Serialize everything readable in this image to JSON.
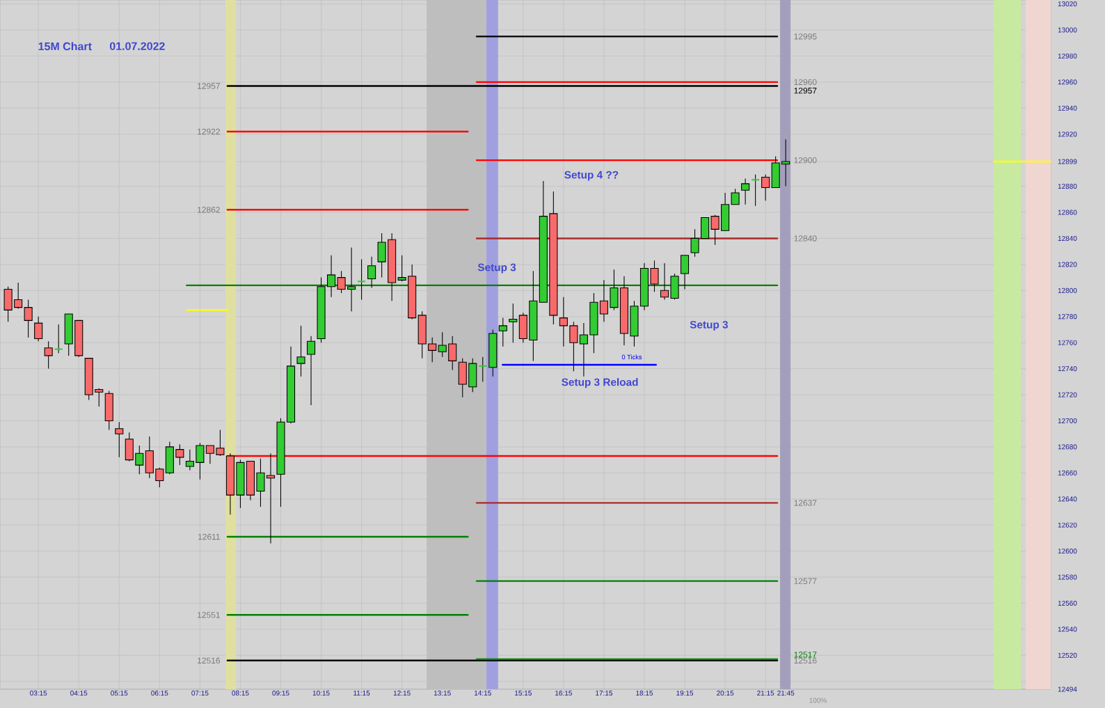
{
  "chart_data": {
    "type": "candlestick",
    "title": "15M Chart",
    "subtitle": "01.07.2022",
    "xlim": [
      2.3,
      28.31
    ],
    "ylim": [
      12494,
      13023
    ],
    "grid": true,
    "xticks": [
      {
        "value": 3.25,
        "label": "03:15"
      },
      {
        "value": 4.25,
        "label": "04:15"
      },
      {
        "value": 5.25,
        "label": "05:15"
      },
      {
        "value": 6.25,
        "label": "06:15"
      },
      {
        "value": 7.25,
        "label": "07:15"
      },
      {
        "value": 8.25,
        "label": "08:15"
      },
      {
        "value": 9.25,
        "label": "09:15"
      },
      {
        "value": 10.25,
        "label": "10:15"
      },
      {
        "value": 11.25,
        "label": "11:15"
      },
      {
        "value": 12.25,
        "label": "12:15"
      },
      {
        "value": 13.25,
        "label": "13:15"
      },
      {
        "value": 14.25,
        "label": "14:15"
      },
      {
        "value": 15.25,
        "label": "15:15"
      },
      {
        "value": 16.25,
        "label": "16:15"
      },
      {
        "value": 17.25,
        "label": "17:15"
      },
      {
        "value": 18.25,
        "label": "18:15"
      },
      {
        "value": 19.25,
        "label": "19:15"
      },
      {
        "value": 20.25,
        "label": "20:15"
      },
      {
        "value": 21.25,
        "label": "21:15"
      },
      {
        "value": 21.75,
        "label": "21:45"
      }
    ],
    "yticks": [
      {
        "value": 12494,
        "label": "12494"
      },
      {
        "value": 12500,
        "label": null
      },
      12520,
      12540,
      12560,
      12580,
      12600,
      12620,
      12640,
      12660,
      12680,
      12700,
      12720,
      12740,
      12760,
      12780,
      12800,
      12820,
      12840,
      12860,
      12880,
      {
        "value": 12899,
        "label": "12899"
      },
      12920,
      12940,
      12960,
      12980,
      13000,
      13020
    ],
    "bands": [
      {
        "axis": "x",
        "from": 7.88,
        "to": 8.14,
        "color": "#dfe0a0"
      },
      {
        "axis": "x",
        "from": 12.86,
        "to": 14.34,
        "color": "#bebebe"
      },
      {
        "axis": "x",
        "from": 14.34,
        "to": 14.63,
        "color": "#a0a0e0"
      },
      {
        "axis": "x",
        "from": 21.61,
        "to": 21.87,
        "color": "#a39fbb"
      },
      {
        "axis": "x",
        "from": 26.9,
        "to": 27.57,
        "color": "#c8eaa0"
      },
      {
        "axis": "x",
        "from": 27.69,
        "to": 28.31,
        "color": "#f0d6d0"
      }
    ],
    "series": [
      {
        "type": "line",
        "name": "12995",
        "color": "#000000",
        "x": [
          14.1,
          21.54
        ],
        "values": [
          12995,
          12995
        ]
      },
      {
        "type": "line",
        "name": "12960",
        "color": "#ff0000",
        "x": [
          14.1,
          21.54
        ],
        "values": [
          12960,
          12960
        ]
      },
      {
        "type": "line",
        "name": "12957",
        "color": "#000000",
        "x": [
          7.93,
          21.54
        ],
        "values": [
          12957,
          12957
        ]
      },
      {
        "type": "line",
        "name": "12922",
        "color": "#ff0000",
        "x": [
          7.93,
          13.88
        ],
        "values": [
          12922,
          12922
        ]
      },
      {
        "type": "line",
        "name": "12900",
        "color": "#ff0000",
        "x": [
          14.1,
          21.54
        ],
        "values": [
          12900,
          12900
        ]
      },
      {
        "type": "line",
        "name": "12862",
        "color": "#ff0000",
        "x": [
          7.93,
          13.88
        ],
        "values": [
          12862,
          12862
        ]
      },
      {
        "type": "line",
        "name": "12840",
        "color": "#aa2a2a",
        "x": [
          14.1,
          21.54
        ],
        "values": [
          12840,
          12840
        ]
      },
      {
        "type": "line",
        "color": "#008000",
        "x": [
          6.92,
          21.54
        ],
        "values": [
          12804,
          12804
        ]
      },
      {
        "type": "line",
        "color": "#ffff00",
        "x": [
          6.92,
          7.93
        ],
        "values": [
          12785,
          12785
        ]
      },
      {
        "type": "line",
        "color": "#ff0000",
        "x": [
          7.93,
          21.54
        ],
        "values": [
          12673,
          12673
        ]
      },
      {
        "type": "line",
        "name": "12637",
        "color": "#aa2a2a",
        "x": [
          14.1,
          21.54
        ],
        "values": [
          12637,
          12637
        ]
      },
      {
        "type": "line",
        "name": "12611",
        "color": "#008000",
        "x": [
          7.93,
          13.88
        ],
        "values": [
          12611,
          12611
        ]
      },
      {
        "type": "line",
        "name": "12577",
        "color": "#008000",
        "x": [
          14.1,
          21.54
        ],
        "values": [
          12577,
          12577
        ]
      },
      {
        "type": "line",
        "name": "12551",
        "color": "#008000",
        "x": [
          7.93,
          13.88
        ],
        "values": [
          12551,
          12551
        ]
      },
      {
        "type": "line",
        "name": "12516",
        "color": "#000000",
        "x": [
          7.93,
          21.54
        ],
        "values": [
          12516,
          12516
        ]
      },
      {
        "type": "line",
        "name": "12517",
        "color": "#008000",
        "x": [
          14.1,
          21.54
        ],
        "values": [
          12517,
          12517
        ]
      },
      {
        "type": "line",
        "color": "#0000ff",
        "x": [
          14.74,
          18.54
        ],
        "values": [
          12743,
          12743
        ]
      },
      {
        "type": "line",
        "color": "#ffff00",
        "x": [
          26.9,
          28.31
        ],
        "values": [
          12899,
          12899
        ]
      },
      {
        "color": "#33cc33",
        "x": [
          3.75,
          4.0,
          5.75,
          6.5,
          7.0,
          7.25,
          8.25,
          8.75,
          9.25,
          9.5,
          9.75,
          10.0,
          10.25,
          10.5,
          11.0,
          11.25,
          11.5,
          11.75,
          12.25,
          13.25,
          14.0,
          14.25,
          14.5,
          14.75,
          15.0,
          15.5,
          15.75,
          16.75,
          17.0,
          17.5,
          18.0,
          18.25,
          19.0,
          19.25,
          19.5,
          19.75,
          20.25,
          20.5,
          20.75,
          21.0,
          21.5,
          21.75
        ],
        "ohlc": [
          [
            12755,
            12774,
            12752,
            12755
          ],
          [
            12759,
            12782,
            12750,
            12782
          ],
          [
            12666,
            12681,
            12659,
            12675
          ],
          [
            12660,
            12684,
            12659,
            12680
          ],
          [
            12665,
            12678,
            12662,
            12669
          ],
          [
            12668,
            12683,
            12655,
            12681
          ],
          [
            12643,
            12670,
            12633,
            12668
          ],
          [
            12646,
            12671,
            12634,
            12660
          ],
          [
            12659,
            12702,
            12634,
            12699
          ],
          [
            12699,
            12757,
            12698,
            12742
          ],
          [
            12744,
            12773,
            12734,
            12749
          ],
          [
            12751,
            12765,
            12712,
            12761
          ],
          [
            12763,
            12810,
            12760,
            12803
          ],
          [
            12803,
            12827,
            12795,
            12812
          ],
          [
            12801,
            12833,
            12784,
            12803
          ],
          [
            12807,
            12824,
            12793,
            12807
          ],
          [
            12809,
            12826,
            12802,
            12819
          ],
          [
            12822,
            12844,
            12810,
            12837
          ],
          [
            12808,
            12827,
            12807,
            12810
          ],
          [
            12753,
            12768,
            12749,
            12758
          ],
          [
            12726,
            12748,
            12722,
            12744
          ],
          [
            12742,
            12749,
            12730,
            12742
          ],
          [
            12741,
            12770,
            12734,
            12767
          ],
          [
            12769,
            12779,
            12757,
            12773
          ],
          [
            12776,
            12790,
            12760,
            12778
          ],
          [
            12762,
            12815,
            12746,
            12792
          ],
          [
            12791,
            12884,
            12791,
            12857
          ],
          [
            12759,
            12775,
            12734,
            12766
          ],
          [
            12766,
            12798,
            12752,
            12791
          ],
          [
            12787,
            12816,
            12785,
            12802
          ],
          [
            12765,
            12792,
            12757,
            12788
          ],
          [
            12788,
            12821,
            12785,
            12817
          ],
          [
            12794,
            12813,
            12793,
            12811
          ],
          [
            12813,
            12827,
            12801,
            12827
          ],
          [
            12829,
            12847,
            12826,
            12840
          ],
          [
            12840,
            12856,
            12840,
            12856
          ],
          [
            12846,
            12875,
            12846,
            12866
          ],
          [
            12866,
            12878,
            12866,
            12875
          ],
          [
            12877,
            12886,
            12866,
            12882
          ],
          [
            12885,
            12889,
            12865,
            12885
          ],
          [
            12879,
            12903,
            12879,
            12898
          ],
          [
            12897,
            12916,
            12880,
            12899
          ]
        ]
      },
      {
        "color": "#f96a6a",
        "x": [
          2.5,
          2.75,
          3.0,
          3.25,
          3.5,
          4.25,
          4.5,
          4.75,
          5.0,
          5.25,
          5.5,
          6.0,
          6.25,
          6.75,
          7.5,
          7.75,
          8.0,
          8.5,
          9.0,
          10.75,
          12.0,
          12.5,
          12.75,
          13.0,
          13.5,
          13.75,
          15.25,
          16.0,
          16.25,
          16.5,
          17.25,
          17.75,
          18.5,
          18.75,
          20.0,
          21.25
        ],
        "ohlc": [
          [
            12801,
            12803,
            12776,
            12785
          ],
          [
            12793,
            12806,
            12786,
            12787
          ],
          [
            12787,
            12793,
            12764,
            12777
          ],
          [
            12775,
            12780,
            12761,
            12763
          ],
          [
            12756,
            12761,
            12740,
            12750
          ],
          [
            12777,
            12777,
            12749,
            12750
          ],
          [
            12748,
            12748,
            12716,
            12720
          ],
          [
            12724,
            12725,
            12711,
            12722
          ],
          [
            12721,
            12723,
            12693,
            12700
          ],
          [
            12694,
            12699,
            12672,
            12690
          ],
          [
            12686,
            12691,
            12669,
            12670
          ],
          [
            12677,
            12688,
            12656,
            12660
          ],
          [
            12663,
            12664,
            12649,
            12654
          ],
          [
            12678,
            12682,
            12666,
            12672
          ],
          [
            12681,
            12681,
            12667,
            12675
          ],
          [
            12679,
            12693,
            12673,
            12674
          ],
          [
            12673,
            12675,
            12628,
            12643
          ],
          [
            12669,
            12669,
            12639,
            12643
          ],
          [
            12658,
            12675,
            12606,
            12656
          ],
          [
            12810,
            12815,
            12798,
            12801
          ],
          [
            12839,
            12844,
            12792,
            12806
          ],
          [
            12811,
            12820,
            12778,
            12779
          ],
          [
            12781,
            12784,
            12748,
            12759
          ],
          [
            12759,
            12764,
            12745,
            12754
          ],
          [
            12759,
            12765,
            12739,
            12746
          ],
          [
            12745,
            12748,
            12718,
            12728
          ],
          [
            12781,
            12783,
            12760,
            12763
          ],
          [
            12859,
            12876,
            12774,
            12781
          ],
          [
            12779,
            12795,
            12757,
            12773
          ],
          [
            12773,
            12776,
            12738,
            12760
          ],
          [
            12792,
            12808,
            12776,
            12782
          ],
          [
            12802,
            12811,
            12758,
            12767
          ],
          [
            12817,
            12823,
            12799,
            12805
          ],
          [
            12800,
            12821,
            12793,
            12795
          ],
          [
            12857,
            12858,
            12835,
            12847
          ],
          [
            12887,
            12889,
            12869,
            12879
          ]
        ]
      }
    ],
    "annotations": [
      {
        "text": "Setup 3",
        "x": 14.6,
        "y": 12817
      },
      "Setup 4 ??",
      "Setup 3",
      "0 Ticks",
      "Setup 3 Reload",
      "100%"
    ]
  }
}
